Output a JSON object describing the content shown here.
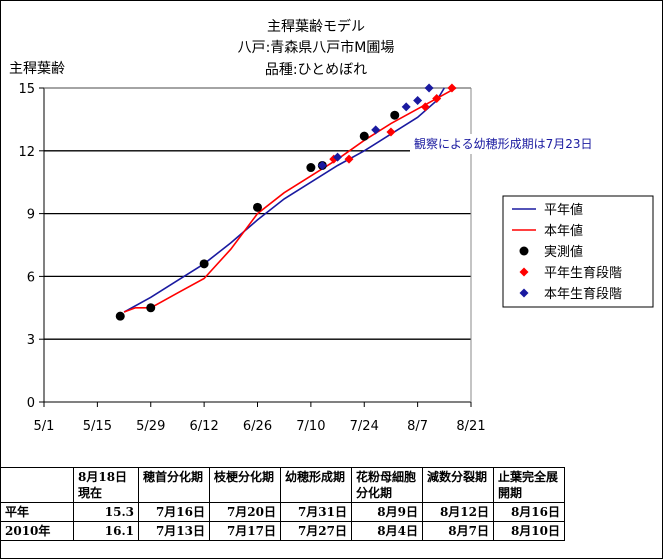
{
  "chart_data": {
    "type": "line",
    "title_lines": [
      "主稈葉齢モデル",
      "八戸:青森県八戸市M圃場",
      "品種:ひとめぼれ"
    ],
    "ylabel": "主稈葉齢",
    "xlabel": "",
    "ylim": [
      0,
      15
    ],
    "yticks": [
      0,
      3,
      6,
      9,
      12,
      15
    ],
    "xlim": [
      "5/1",
      "8/21"
    ],
    "xticks": [
      "5/1",
      "5/15",
      "5/29",
      "6/12",
      "6/26",
      "7/10",
      "7/24",
      "8/7",
      "8/21"
    ],
    "grid": "horizontal",
    "legend_position": "right",
    "series": [
      {
        "name": "平年値",
        "kind": "line",
        "color": "#1a1aa0",
        "points": [
          [
            "5/22",
            4.3
          ],
          [
            "5/29",
            5.0
          ],
          [
            "6/5",
            5.8
          ],
          [
            "6/12",
            6.6
          ],
          [
            "6/19",
            7.6
          ],
          [
            "6/26",
            8.7
          ],
          [
            "7/3",
            9.7
          ],
          [
            "7/10",
            10.5
          ],
          [
            "7/17",
            11.3
          ],
          [
            "7/24",
            12.0
          ],
          [
            "7/31",
            12.8
          ],
          [
            "8/7",
            13.6
          ],
          [
            "8/12",
            14.4
          ],
          [
            "8/14",
            15.0
          ]
        ]
      },
      {
        "name": "本年値",
        "kind": "line",
        "color": "#ff0000",
        "points": [
          [
            "5/22",
            4.3
          ],
          [
            "5/25",
            4.5
          ],
          [
            "5/29",
            4.5
          ],
          [
            "6/5",
            5.2
          ],
          [
            "6/12",
            5.9
          ],
          [
            "6/19",
            7.3
          ],
          [
            "6/26",
            9.0
          ],
          [
            "7/3",
            10.0
          ],
          [
            "7/10",
            10.8
          ],
          [
            "7/17",
            11.6
          ],
          [
            "7/24",
            12.5
          ],
          [
            "7/31",
            13.3
          ],
          [
            "8/7",
            14.0
          ],
          [
            "8/14",
            14.7
          ],
          [
            "8/17",
            15.0
          ]
        ]
      },
      {
        "name": "実測値",
        "kind": "dot",
        "color": "#000000",
        "points": [
          [
            "5/21",
            4.1
          ],
          [
            "5/29",
            4.5
          ],
          [
            "6/12",
            6.6
          ],
          [
            "6/26",
            9.3
          ],
          [
            "7/10",
            11.2
          ],
          [
            "7/13",
            11.3
          ],
          [
            "7/24",
            12.7
          ],
          [
            "8/1",
            13.7
          ]
        ]
      },
      {
        "name": "平年生育段階",
        "kind": "diamond",
        "color": "#ff0000",
        "points": [
          [
            "7/16",
            11.6
          ],
          [
            "7/20",
            11.6
          ],
          [
            "7/31",
            12.9
          ],
          [
            "8/9",
            14.1
          ],
          [
            "8/12",
            14.5
          ],
          [
            "8/16",
            15.0
          ]
        ]
      },
      {
        "name": "本年生育段階",
        "kind": "diamond",
        "color": "#1a1aa0",
        "points": [
          [
            "7/13",
            11.3
          ],
          [
            "7/17",
            11.7
          ],
          [
            "7/27",
            13.0
          ],
          [
            "8/4",
            14.1
          ],
          [
            "8/7",
            14.4
          ],
          [
            "8/10",
            15.0
          ]
        ]
      }
    ],
    "annotation": "観察による幼穂形成期は7月23日"
  },
  "table": {
    "headers": [
      "",
      "8月18日現在",
      "穂首分化期",
      "枝梗分化期",
      "幼穂形成期",
      "花粉母細胞分化期",
      "減数分裂期",
      "止葉完全展開期"
    ],
    "rows": [
      [
        "平年",
        "15.3",
        "7月16日",
        "7月20日",
        "7月31日",
        "8月9日",
        "8月12日",
        "8月16日"
      ],
      [
        "2010年",
        "16.1",
        "7月13日",
        "7月17日",
        "7月27日",
        "8月4日",
        "8月7日",
        "8月10日"
      ]
    ]
  }
}
